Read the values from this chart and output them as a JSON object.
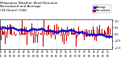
{
  "title": "Milwaukee Weather Wind Direction\nNormalized and Average\n(24 Hours) (Old)",
  "title_fontsize": 3.0,
  "background_color": "#ffffff",
  "plot_bg_color": "#ffffff",
  "grid_color": "#bbbbbb",
  "bar_color": "#cc0000",
  "avg_color": "#0000cc",
  "ylim": [
    -1.1,
    1.1
  ],
  "yticks": [
    -1.0,
    -0.5,
    0.0,
    0.5,
    1.0
  ],
  "n_points": 288,
  "legend_bar_label": "Normalized",
  "legend_avg_label": "Average",
  "xlabel_fontsize": 2.2,
  "ylabel_fontsize": 2.5,
  "vgrid_positions": [
    48,
    96,
    144,
    192,
    240
  ]
}
